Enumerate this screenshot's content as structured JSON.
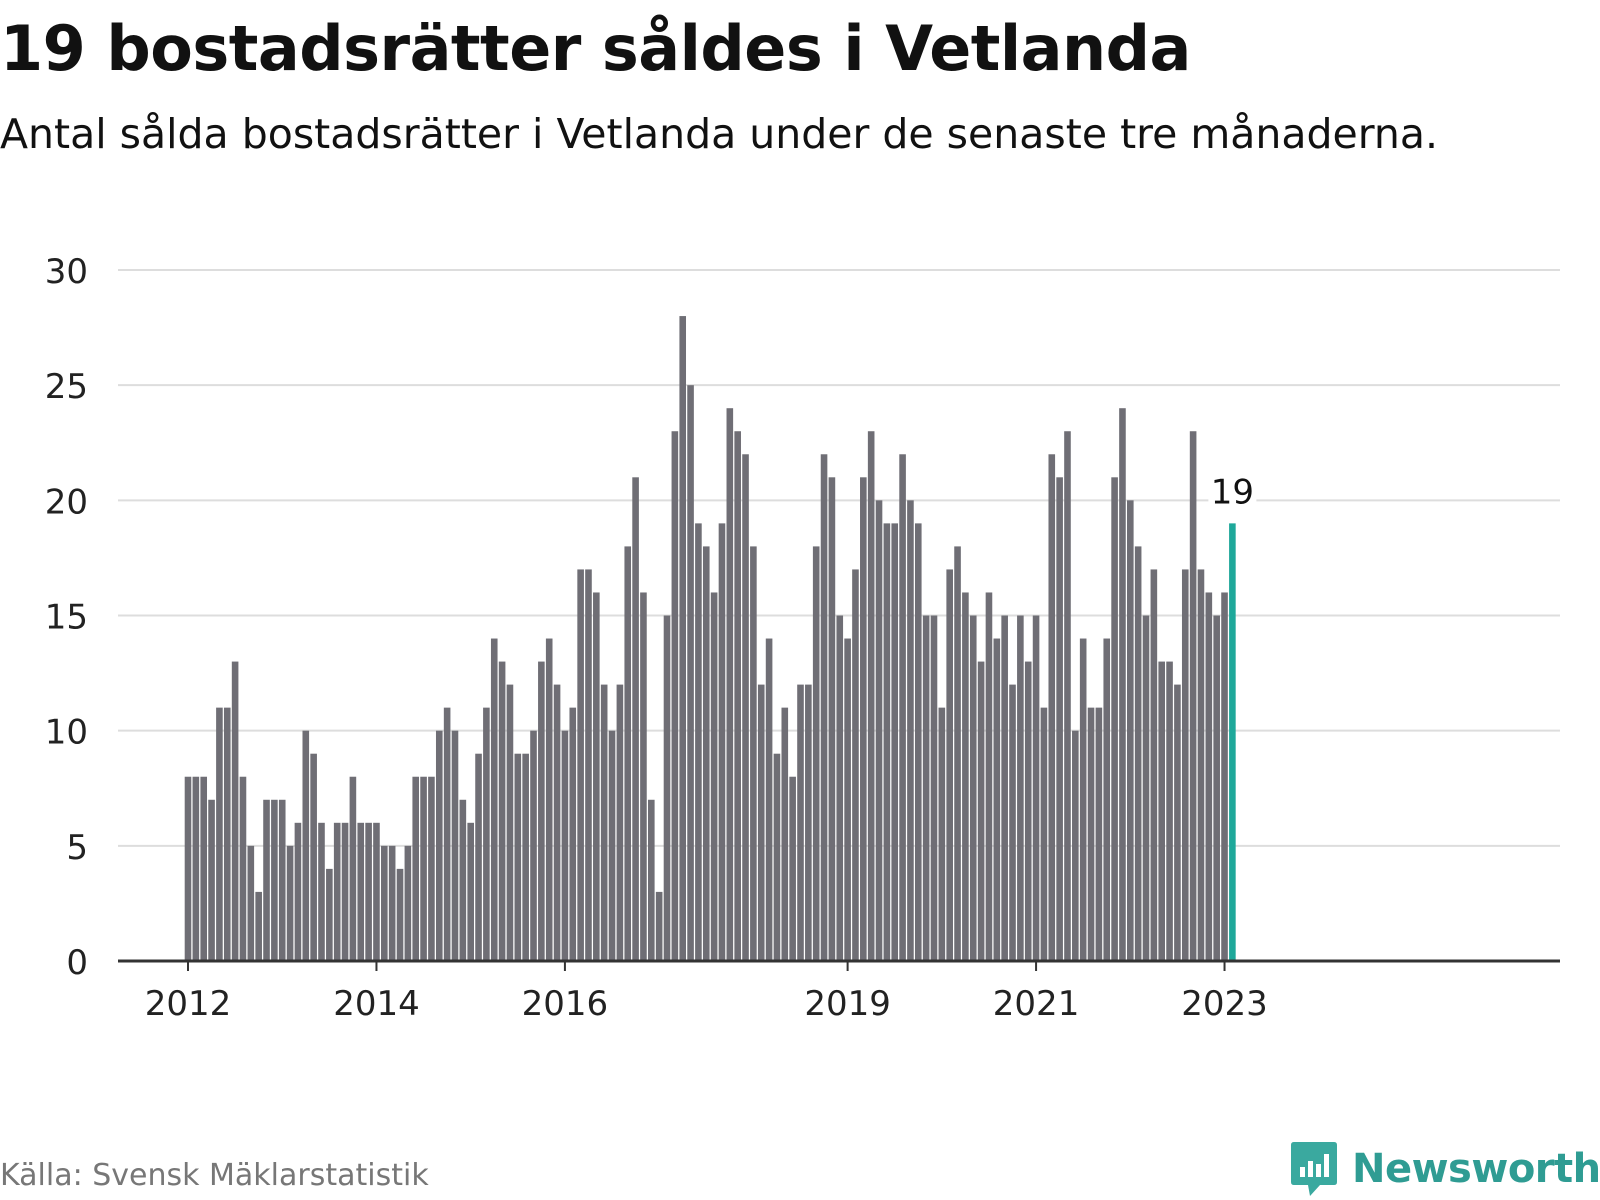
{
  "title": "19 bostadsrätter såldes i Vetlanda",
  "subtitle": "Antal sålda bostadsrätter i Vetlanda under de senaste tre månaderna.",
  "source": "Källa: Svensk Mäklarstatistik",
  "brand": "Newsworthy",
  "colors": {
    "bar": "#6f6e75",
    "highlight": "#1ea89a",
    "grid": "#dddddd",
    "axis": "#333333",
    "brand": "#2f9c93"
  },
  "chart_data": {
    "type": "bar",
    "title": "19 bostadsrätter såldes i Vetlanda",
    "xlabel": "",
    "ylabel": "",
    "ylim": [
      0,
      30
    ],
    "yticks": [
      0,
      5,
      10,
      15,
      20,
      25,
      30
    ],
    "grid": true,
    "xtick_labels": [
      {
        "label": "2012",
        "index": 0
      },
      {
        "label": "2014",
        "index": 24
      },
      {
        "label": "2016",
        "index": 48
      },
      {
        "label": "2019",
        "index": 84
      },
      {
        "label": "2021",
        "index": 108
      },
      {
        "label": "2023",
        "index": 132
      }
    ],
    "first_period": "2012-01",
    "values": [
      8,
      8,
      8,
      7,
      11,
      11,
      13,
      8,
      5,
      3,
      7,
      7,
      7,
      5,
      6,
      10,
      9,
      6,
      4,
      6,
      6,
      8,
      6,
      6,
      6,
      5,
      5,
      4,
      5,
      8,
      8,
      8,
      10,
      11,
      10,
      7,
      6,
      9,
      11,
      14,
      13,
      12,
      9,
      9,
      10,
      13,
      14,
      12,
      10,
      11,
      17,
      17,
      16,
      12,
      10,
      12,
      18,
      21,
      16,
      7,
      3,
      15,
      23,
      28,
      25,
      19,
      18,
      16,
      19,
      24,
      23,
      22,
      18,
      12,
      14,
      9,
      11,
      8,
      12,
      12,
      18,
      22,
      21,
      15,
      14,
      17,
      21,
      23,
      20,
      19,
      19,
      22,
      20,
      19,
      15,
      15,
      11,
      17,
      18,
      16,
      15,
      13,
      16,
      14,
      15,
      12,
      15,
      13,
      15,
      11,
      22,
      21,
      23,
      10,
      14,
      11,
      11,
      14,
      21,
      24,
      20,
      18,
      15,
      17,
      13,
      13,
      12,
      17,
      23,
      17,
      16,
      15,
      16,
      19
    ],
    "highlight": {
      "index": 133,
      "label": "19"
    }
  }
}
